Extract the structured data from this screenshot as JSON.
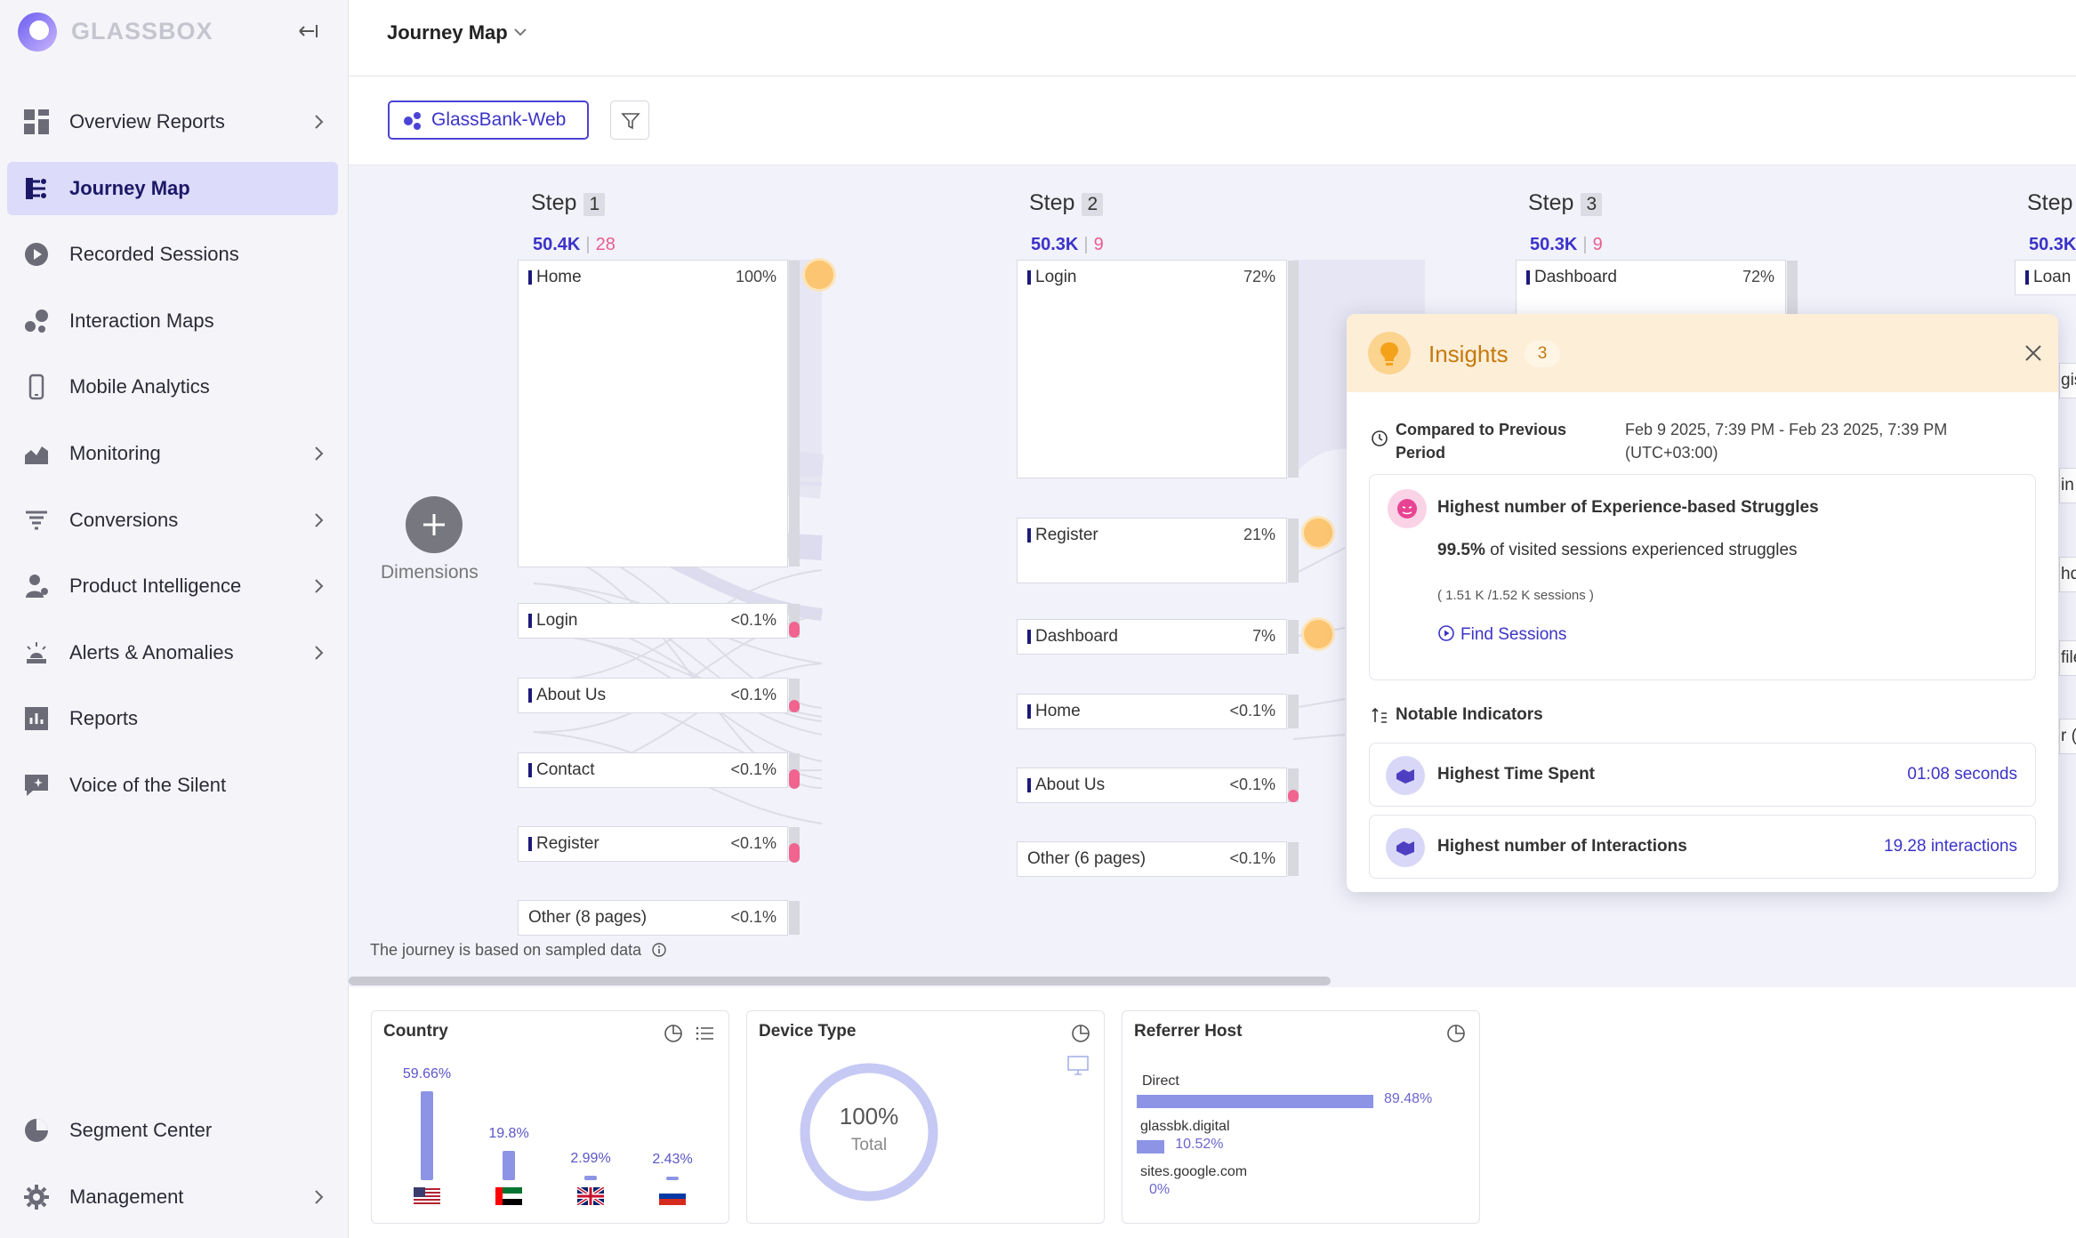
{
  "app": {
    "name": "GLASSBOX"
  },
  "sidebar": {
    "items": [
      {
        "label": "Overview Reports",
        "icon": "dashboard-grid-icon",
        "chevron": true
      },
      {
        "label": "Journey Map",
        "icon": "journey-map-icon",
        "chevron": false,
        "active": true
      },
      {
        "label": "Recorded Sessions",
        "icon": "play-circle-icon",
        "chevron": false
      },
      {
        "label": "Interaction Maps",
        "icon": "bubbles-icon",
        "chevron": false
      },
      {
        "label": "Mobile Analytics",
        "icon": "mobile-phone-icon",
        "chevron": false
      },
      {
        "label": "Monitoring",
        "icon": "area-chart-icon",
        "chevron": true
      },
      {
        "label": "Conversions",
        "icon": "funnel-lines-icon",
        "chevron": true
      },
      {
        "label": "Product Intelligence",
        "icon": "person-icon",
        "chevron": true
      },
      {
        "label": "Alerts & Anomalies",
        "icon": "alarm-light-icon",
        "chevron": true
      },
      {
        "label": "Reports",
        "icon": "bar-report-icon",
        "chevron": false
      },
      {
        "label": "Voice of the Silent",
        "icon": "sparkle-chat-icon",
        "chevron": false
      }
    ],
    "bottom_items": [
      {
        "label": "Segment Center",
        "icon": "pie-segment-icon",
        "chevron": false
      },
      {
        "label": "Management",
        "icon": "gear-icon",
        "chevron": true
      }
    ]
  },
  "header": {
    "title": "Journey Map"
  },
  "toolbar": {
    "app_chip": "GlassBank-Web"
  },
  "journey": {
    "dimensions_label": "Dimensions",
    "sample_note": "The journey is based on sampled data",
    "steps": [
      {
        "label": "Step",
        "num": "1",
        "sessions": "50.4K",
        "struggles": "28"
      },
      {
        "label": "Step",
        "num": "2",
        "sessions": "50.3K",
        "struggles": "9"
      },
      {
        "label": "Step",
        "num": "3",
        "sessions": "50.3K",
        "struggles": "9"
      },
      {
        "label": "Step",
        "num": "",
        "sessions": "50.3K",
        "struggles": ""
      }
    ],
    "step1_nodes": [
      {
        "label": "Home",
        "pct": "100%"
      },
      {
        "label": "Login",
        "pct": "<0.1%"
      },
      {
        "label": "About Us",
        "pct": "<0.1%"
      },
      {
        "label": "Contact",
        "pct": "<0.1%"
      },
      {
        "label": "Register",
        "pct": "<0.1%"
      },
      {
        "label": "Other (8 pages)",
        "pct": "<0.1%"
      }
    ],
    "step2_nodes": [
      {
        "label": "Login",
        "pct": "72%"
      },
      {
        "label": "Register",
        "pct": "21%"
      },
      {
        "label": "Dashboard",
        "pct": "7%"
      },
      {
        "label": "Home",
        "pct": "<0.1%"
      },
      {
        "label": "About Us",
        "pct": "<0.1%"
      },
      {
        "label": "Other (6 pages)",
        "pct": "<0.1%"
      }
    ],
    "step3_nodes": [
      {
        "label": "Dashboard",
        "pct": "72%"
      }
    ],
    "step4_nodes": [
      {
        "label": "Loan p"
      }
    ],
    "step4_fragments": [
      "gist",
      "in",
      "hd",
      "file",
      "r ("
    ]
  },
  "insights": {
    "title": "Insights",
    "count": "3",
    "compared_label": "Compared to Previous Period",
    "compared_value": "Feb 9 2025, 7:39 PM - Feb 23 2025, 7:39 PM (UTC+03:00)",
    "struggle": {
      "title": "Highest number of Experience-based Struggles",
      "pct": "99.5%",
      "desc": "of visited sessions experienced struggles",
      "sub": "( 1.51 K /1.52 K sessions )",
      "action": "Find Sessions"
    },
    "notable_label": "Notable Indicators",
    "indicators": [
      {
        "label": "Highest Time Spent",
        "value": "01:08 seconds"
      },
      {
        "label": "Highest number of Interactions",
        "value": "19.28 interactions"
      }
    ]
  },
  "widgets": {
    "country": {
      "title": "Country",
      "bars": [
        {
          "pct": "59.66%",
          "value": 59.66,
          "flag": "us-flag-icon"
        },
        {
          "pct": "19.8%",
          "value": 19.8,
          "flag": "uae-flag-icon"
        },
        {
          "pct": "2.99%",
          "value": 2.99,
          "flag": "uk-flag-icon"
        },
        {
          "pct": "2.43%",
          "value": 2.43,
          "flag": "russia-flag-icon"
        }
      ]
    },
    "device": {
      "title": "Device Type",
      "value": "100%",
      "label": "Total",
      "fraction": 1.0
    },
    "referrer": {
      "title": "Referrer Host",
      "rows": [
        {
          "label": "Direct",
          "pct": "89.48%",
          "value": 89.48
        },
        {
          "label": "glassbk.digital",
          "pct": "10.52%",
          "value": 10.52
        },
        {
          "label": "sites.google.com",
          "pct": "0%",
          "value": 0
        }
      ]
    }
  },
  "colors": {
    "accent": "#3b33c8",
    "active_nav": "#dcdbfa",
    "struggle": "#e85d8d",
    "insight": "#fbc571",
    "bar": "#8d94e6"
  }
}
